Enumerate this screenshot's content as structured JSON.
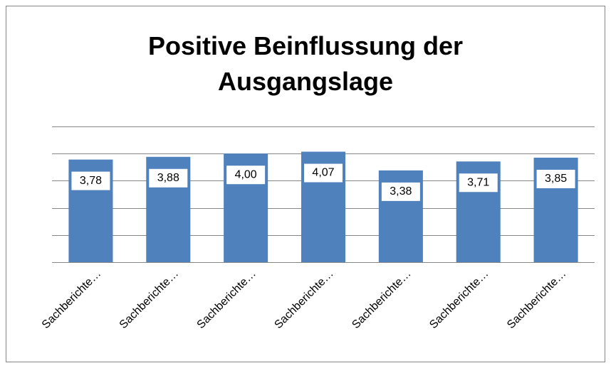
{
  "chart_data": {
    "type": "bar",
    "title": "Positive Beinflussung der Ausgangslage",
    "categories": [
      "Sachberichte…",
      "Sachberichte…",
      "Sachberichte…",
      "Sachberichte…",
      "Sachberichte…",
      "Sachberichte…",
      "Sachberichte…"
    ],
    "values": [
      3.78,
      3.88,
      4.0,
      4.07,
      3.38,
      3.71,
      3.85
    ],
    "value_labels": [
      "3,78",
      "3,88",
      "4,00",
      "4,07",
      "3,38",
      "3,71",
      "3,85"
    ],
    "color": "#4f81bd",
    "ylim": [
      0,
      5
    ],
    "yticks": [
      0,
      1,
      2,
      3,
      4,
      5
    ],
    "grid": true
  }
}
